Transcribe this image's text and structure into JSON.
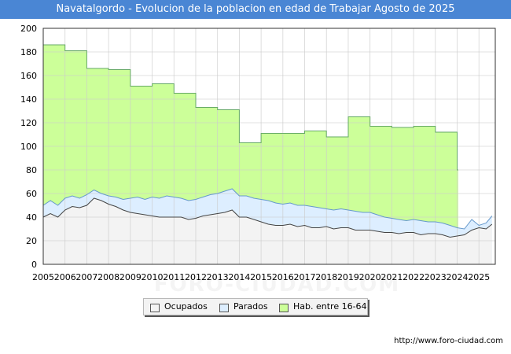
{
  "chart_data": {
    "type": "area",
    "title": "Navatalgordo - Evolucion de la poblacion en edad de Trabajar Agosto de 2025",
    "xlabel": "",
    "ylabel": "",
    "xlim": [
      2005,
      2025.75
    ],
    "ylim": [
      0,
      200
    ],
    "yticks": [
      0,
      20,
      40,
      60,
      80,
      100,
      120,
      140,
      160,
      180,
      200
    ],
    "xticks": [
      "2005",
      "2006",
      "2007",
      "2008",
      "2009",
      "2010",
      "2011",
      "2012",
      "2013",
      "2014",
      "2015",
      "2016",
      "2017",
      "2018",
      "2019",
      "2020",
      "2021",
      "2022",
      "2023",
      "2024",
      "2025"
    ],
    "grid": true,
    "legend_position": "bottom",
    "series": [
      {
        "name": "Hab. entre 16-64",
        "color": "#ccff99",
        "line_color": "#66aa66",
        "x": [
          2005,
          2006,
          2007,
          2008,
          2009,
          2010,
          2011,
          2012,
          2013,
          2014,
          2015,
          2016,
          2017,
          2018,
          2019,
          2020,
          2021,
          2022,
          2023,
          2024
        ],
        "values": [
          186,
          181,
          166,
          165,
          151,
          153,
          145,
          133,
          131,
          103,
          111,
          111,
          113,
          108,
          125,
          117,
          116,
          117,
          112,
          80
        ]
      },
      {
        "name": "Parados",
        "color": "#ddeeff",
        "line_color": "#6699cc",
        "x": [
          2005.0,
          2005.33,
          2005.67,
          2006.0,
          2006.33,
          2006.67,
          2007.0,
          2007.33,
          2007.67,
          2008.0,
          2008.33,
          2008.67,
          2009.0,
          2009.33,
          2009.67,
          2010.0,
          2010.33,
          2010.67,
          2011.0,
          2011.33,
          2011.67,
          2012.0,
          2012.33,
          2012.67,
          2013.0,
          2013.33,
          2013.67,
          2014.0,
          2014.33,
          2014.67,
          2015.0,
          2015.33,
          2015.67,
          2016.0,
          2016.33,
          2016.67,
          2017.0,
          2017.33,
          2017.67,
          2018.0,
          2018.33,
          2018.67,
          2019.0,
          2019.33,
          2019.67,
          2020.0,
          2020.33,
          2020.67,
          2021.0,
          2021.33,
          2021.67,
          2022.0,
          2022.33,
          2022.67,
          2023.0,
          2023.33,
          2023.67,
          2024.0,
          2024.33,
          2024.67,
          2025.0,
          2025.33,
          2025.6
        ],
        "values": [
          50,
          54,
          50,
          56,
          58,
          56,
          59,
          63,
          60,
          58,
          57,
          55,
          56,
          57,
          55,
          57,
          56,
          58,
          57,
          56,
          54,
          55,
          57,
          59,
          60,
          62,
          64,
          58,
          58,
          56,
          55,
          54,
          52,
          51,
          52,
          50,
          50,
          49,
          48,
          47,
          46,
          47,
          46,
          45,
          44,
          44,
          42,
          40,
          39,
          38,
          37,
          38,
          37,
          36,
          36,
          35,
          33,
          31,
          30,
          38,
          33,
          35,
          41
        ]
      },
      {
        "name": "Ocupados",
        "color": "#f3f3f3",
        "line_color": "#444444",
        "x": [
          2005.0,
          2005.33,
          2005.67,
          2006.0,
          2006.33,
          2006.67,
          2007.0,
          2007.33,
          2007.67,
          2008.0,
          2008.33,
          2008.67,
          2009.0,
          2009.33,
          2009.67,
          2010.0,
          2010.33,
          2010.67,
          2011.0,
          2011.33,
          2011.67,
          2012.0,
          2012.33,
          2012.67,
          2013.0,
          2013.33,
          2013.67,
          2014.0,
          2014.33,
          2014.67,
          2015.0,
          2015.33,
          2015.67,
          2016.0,
          2016.33,
          2016.67,
          2017.0,
          2017.33,
          2017.67,
          2018.0,
          2018.33,
          2018.67,
          2019.0,
          2019.33,
          2019.67,
          2020.0,
          2020.33,
          2020.67,
          2021.0,
          2021.33,
          2021.67,
          2022.0,
          2022.33,
          2022.67,
          2023.0,
          2023.33,
          2023.67,
          2024.0,
          2024.33,
          2024.67,
          2025.0,
          2025.33,
          2025.6
        ],
        "values": [
          40,
          43,
          40,
          46,
          49,
          48,
          50,
          56,
          54,
          51,
          49,
          46,
          44,
          43,
          42,
          41,
          40,
          40,
          40,
          40,
          38,
          39,
          41,
          42,
          43,
          44,
          46,
          40,
          40,
          38,
          36,
          34,
          33,
          33,
          34,
          32,
          33,
          31,
          31,
          32,
          30,
          31,
          31,
          29,
          29,
          29,
          28,
          27,
          27,
          26,
          27,
          27,
          25,
          26,
          26,
          25,
          23,
          24,
          25,
          29,
          31,
          30,
          34
        ]
      }
    ]
  },
  "legend": {
    "items": [
      {
        "label": "Ocupados",
        "color": "#f3f3f3"
      },
      {
        "label": "Parados",
        "color": "#ddeeff"
      },
      {
        "label": "Hab. entre 16-64",
        "color": "#ccff99"
      }
    ]
  },
  "watermark": "FORO-CIUDAD.COM",
  "source": "http://www.foro-ciudad.com"
}
